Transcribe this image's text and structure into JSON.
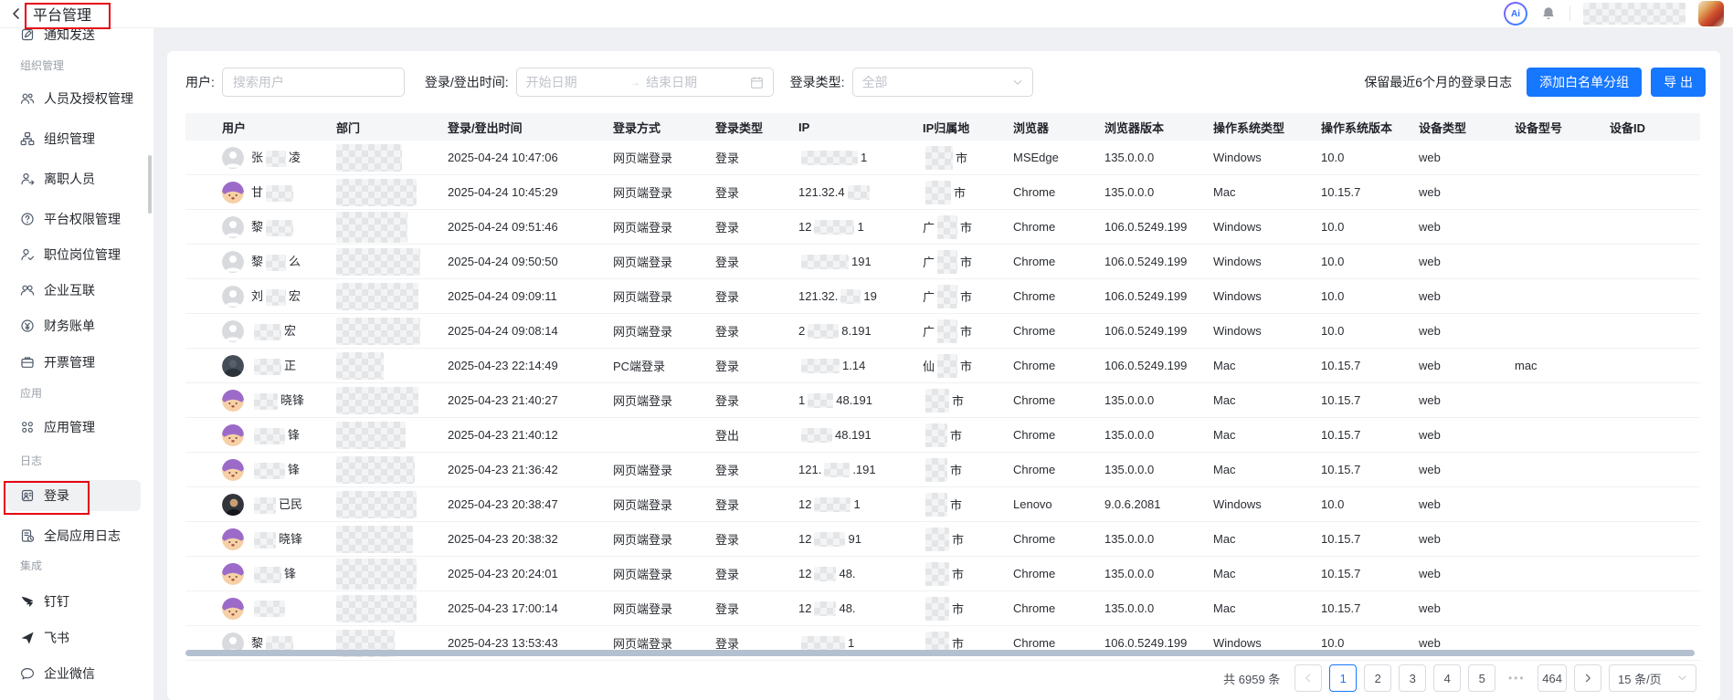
{
  "topbar": {
    "title": "平台管理",
    "ai_badge": "Ai"
  },
  "annotations": {
    "color": "#e60012"
  },
  "sidebar": {
    "items": [
      {
        "type": "item",
        "label": "通知发送",
        "icon": "notify-icon"
      },
      {
        "type": "section",
        "label": "组织管理"
      },
      {
        "type": "item",
        "label": "人员及授权管理",
        "icon": "people-icon"
      },
      {
        "type": "item",
        "label": "组织管理",
        "icon": "org-icon"
      },
      {
        "type": "item",
        "label": "离职人员",
        "icon": "person-leave-icon"
      },
      {
        "type": "item",
        "label": "平台权限管理",
        "icon": "permission-icon"
      },
      {
        "type": "item",
        "label": "职位岗位管理",
        "icon": "position-icon"
      },
      {
        "type": "item",
        "label": "企业互联",
        "icon": "enterprise-link-icon"
      },
      {
        "type": "item",
        "label": "财务账单",
        "icon": "finance-icon"
      },
      {
        "type": "item",
        "label": "开票管理",
        "icon": "invoice-icon"
      },
      {
        "type": "section",
        "label": "应用"
      },
      {
        "type": "item",
        "label": "应用管理",
        "icon": "apps-icon"
      },
      {
        "type": "section",
        "label": "日志"
      },
      {
        "type": "item",
        "label": "登录",
        "icon": "login-log-icon",
        "selected": true,
        "annotated": true
      },
      {
        "type": "item",
        "label": "全局应用日志",
        "icon": "global-log-icon"
      },
      {
        "type": "section",
        "label": "集成"
      },
      {
        "type": "item",
        "label": "钉钉",
        "icon": "dingtalk-icon"
      },
      {
        "type": "item",
        "label": "飞书",
        "icon": "feishu-icon"
      },
      {
        "type": "item",
        "label": "企业微信",
        "icon": "wecom-icon"
      }
    ]
  },
  "filters": {
    "user_label": "用户:",
    "user_placeholder": "搜索用户",
    "time_label": "登录/登出时间:",
    "start_placeholder": "开始日期",
    "range_arrow": "→",
    "end_placeholder": "结束日期",
    "type_label": "登录类型:",
    "type_value": "全部"
  },
  "toolbar": {
    "retention_note": "保留最近6个月的登录日志",
    "add_whitelist": "添加白名单分组",
    "export": "导 出"
  },
  "table": {
    "columns": [
      "用户",
      "部门",
      "登录/登出时间",
      "登录方式",
      "登录类型",
      "IP",
      "IP归属地",
      "浏览器",
      "浏览器版本",
      "操作系统类型",
      "操作系统版本",
      "设备类型",
      "设备型号",
      "设备ID"
    ],
    "rows": [
      {
        "avatar": "default",
        "name_pre": "张",
        "name_m": 22,
        "name_suf": "凌",
        "dept_m": [
          72,
          30
        ],
        "time": "2025-04-24 10:47:06",
        "method": "网页端登录",
        "type": "登录",
        "ip_pre": "",
        "ip_m": 62,
        "ip_suf": "1",
        "city_pre": "",
        "city_m": 30,
        "city_suf": "市",
        "browser": "MSEdge",
        "browser_ver": "135.0.0.0",
        "os": "Windows",
        "os_ver": "10.0",
        "device_type": "web",
        "device_model": ""
      },
      {
        "avatar": "purple",
        "name_pre": "甘",
        "name_m": 30,
        "name_suf": "",
        "dept_m": [
          88,
          30
        ],
        "time": "2025-04-24 10:45:29",
        "method": "网页端登录",
        "type": "登录",
        "ip_pre": "121.32.4",
        "ip_m": 24,
        "ip_suf": "",
        "city_pre": "",
        "city_m": 28,
        "city_suf": "市",
        "browser": "Chrome",
        "browser_ver": "135.0.0.0",
        "os": "Mac",
        "os_ver": "10.15.7",
        "device_type": "web",
        "device_model": ""
      },
      {
        "avatar": "default",
        "name_pre": "黎",
        "name_m": 30,
        "name_suf": "",
        "dept_m": [
          78,
          34
        ],
        "time": "2025-04-24 09:51:46",
        "method": "网页端登录",
        "type": "登录",
        "ip_pre": "12",
        "ip_m": 44,
        "ip_suf": "1",
        "city_pre": "广",
        "city_m": 22,
        "city_suf": "市",
        "browser": "Chrome",
        "browser_ver": "106.0.5249.199",
        "os": "Windows",
        "os_ver": "10.0",
        "device_type": "web",
        "device_model": ""
      },
      {
        "avatar": "default",
        "name_pre": "黎",
        "name_m": 22,
        "name_suf": "么",
        "dept_m": [
          92,
          30
        ],
        "time": "2025-04-24 09:50:50",
        "method": "网页端登录",
        "type": "登录",
        "ip_pre": "",
        "ip_m": 52,
        "ip_suf": "191",
        "city_pre": "广",
        "city_m": 22,
        "city_suf": "市",
        "browser": "Chrome",
        "browser_ver": "106.0.5249.199",
        "os": "Windows",
        "os_ver": "10.0",
        "device_type": "web",
        "device_model": ""
      },
      {
        "avatar": "default",
        "name_pre": "刘",
        "name_m": 22,
        "name_suf": "宏",
        "dept_m": [
          90,
          30
        ],
        "time": "2025-04-24 09:09:11",
        "method": "网页端登录",
        "type": "登录",
        "ip_pre": "121.32.",
        "ip_m": 22,
        "ip_suf": "19",
        "city_pre": "广",
        "city_m": 22,
        "city_suf": "市",
        "browser": "Chrome",
        "browser_ver": "106.0.5249.199",
        "os": "Windows",
        "os_ver": "10.0",
        "device_type": "web",
        "device_model": ""
      },
      {
        "avatar": "default",
        "name_pre": "",
        "name_m": 30,
        "name_suf": "宏",
        "dept_m": [
          92,
          30
        ],
        "time": "2025-04-24 09:08:14",
        "method": "网页端登录",
        "type": "登录",
        "ip_pre": "2",
        "ip_m": 34,
        "ip_suf": "8.191",
        "city_pre": "广",
        "city_m": 22,
        "city_suf": "市",
        "browser": "Chrome",
        "browser_ver": "106.0.5249.199",
        "os": "Windows",
        "os_ver": "10.0",
        "device_type": "web",
        "device_model": ""
      },
      {
        "avatar": "dark",
        "name_pre": "",
        "name_m": 30,
        "name_suf": "正",
        "dept_m": [
          52,
          30
        ],
        "time": "2025-04-23 22:14:49",
        "method": "PC端登录",
        "type": "登录",
        "ip_pre": "",
        "ip_m": 42,
        "ip_suf": "1.14",
        "city_pre": "仙",
        "city_m": 22,
        "city_suf": "市",
        "browser": "Chrome",
        "browser_ver": "106.0.5249.199",
        "os": "Mac",
        "os_ver": "10.15.7",
        "device_type": "web",
        "device_model": "mac"
      },
      {
        "avatar": "purple",
        "name_pre": "",
        "name_m": 26,
        "name_suf": "晓锋",
        "dept_m": [
          90,
          30
        ],
        "time": "2025-04-23 21:40:27",
        "method": "网页端登录",
        "type": "登录",
        "ip_pre": "1",
        "ip_m": 28,
        "ip_suf": "48.191",
        "city_pre": "",
        "city_m": 26,
        "city_suf": "市",
        "browser": "Chrome",
        "browser_ver": "135.0.0.0",
        "os": "Mac",
        "os_ver": "10.15.7",
        "device_type": "web",
        "device_model": ""
      },
      {
        "avatar": "purple",
        "name_pre": "",
        "name_m": 34,
        "name_suf": "锋",
        "dept_m": [
          76,
          30
        ],
        "time": "2025-04-23 21:40:12",
        "method": "",
        "type": "登出",
        "ip_pre": "",
        "ip_m": 34,
        "ip_suf": "48.191",
        "city_pre": "",
        "city_m": 24,
        "city_suf": "市",
        "browser": "Chrome",
        "browser_ver": "135.0.0.0",
        "os": "Mac",
        "os_ver": "10.15.7",
        "device_type": "web",
        "device_model": ""
      },
      {
        "avatar": "purple",
        "name_pre": "",
        "name_m": 34,
        "name_suf": "锋",
        "dept_m": [
          86,
          30
        ],
        "time": "2025-04-23 21:36:42",
        "method": "网页端登录",
        "type": "登录",
        "ip_pre": "121.",
        "ip_m": 28,
        "ip_suf": ".191",
        "city_pre": "",
        "city_m": 24,
        "city_suf": "市",
        "browser": "Chrome",
        "browser_ver": "135.0.0.0",
        "os": "Mac",
        "os_ver": "10.15.7",
        "device_type": "web",
        "device_model": ""
      },
      {
        "avatar": "person",
        "name_pre": "",
        "name_m": 24,
        "name_suf": "已民",
        "dept_m": [
          88,
          30
        ],
        "time": "2025-04-23 20:38:47",
        "method": "网页端登录",
        "type": "登录",
        "ip_pre": "12",
        "ip_m": 40,
        "ip_suf": "1",
        "city_pre": "",
        "city_m": 24,
        "city_suf": "市",
        "browser": "Lenovo",
        "browser_ver": "9.0.6.2081",
        "os": "Windows",
        "os_ver": "10.0",
        "device_type": "web",
        "device_model": ""
      },
      {
        "avatar": "purple",
        "name_pre": "",
        "name_m": 24,
        "name_suf": "晓锋",
        "dept_m": [
          84,
          30
        ],
        "time": "2025-04-23 20:38:32",
        "method": "网页端登录",
        "type": "登录",
        "ip_pre": "12",
        "ip_m": 34,
        "ip_suf": "91",
        "city_pre": "",
        "city_m": 26,
        "city_suf": "市",
        "browser": "Chrome",
        "browser_ver": "135.0.0.0",
        "os": "Mac",
        "os_ver": "10.15.7",
        "device_type": "web",
        "device_model": ""
      },
      {
        "avatar": "purple",
        "name_pre": "",
        "name_m": 30,
        "name_suf": "锋",
        "dept_m": [
          88,
          34
        ],
        "time": "2025-04-23 20:24:01",
        "method": "网页端登录",
        "type": "登录",
        "ip_pre": "12",
        "ip_m": 24,
        "ip_suf": "48.",
        "city_pre": "",
        "city_m": 26,
        "city_suf": "市",
        "browser": "Chrome",
        "browser_ver": "135.0.0.0",
        "os": "Mac",
        "os_ver": "10.15.7",
        "device_type": "web",
        "device_model": ""
      },
      {
        "avatar": "purple",
        "name_pre": "",
        "name_m": 34,
        "name_suf": "",
        "dept_m": [
          88,
          30
        ],
        "time": "2025-04-23 17:00:14",
        "method": "网页端登录",
        "type": "登录",
        "ip_pre": "12",
        "ip_m": 24,
        "ip_suf": "48.",
        "city_pre": "",
        "city_m": 26,
        "city_suf": "市",
        "browser": "Chrome",
        "browser_ver": "135.0.0.0",
        "os": "Mac",
        "os_ver": "10.15.7",
        "device_type": "web",
        "device_model": ""
      },
      {
        "avatar": "default",
        "name_pre": "黎",
        "name_m": 30,
        "name_suf": "",
        "dept_m": [
          64,
          30
        ],
        "time": "2025-04-23 13:53:43",
        "method": "网页端登录",
        "type": "登录",
        "ip_pre": "",
        "ip_m": 48,
        "ip_suf": "1",
        "city_pre": "",
        "city_m": 26,
        "city_suf": "市",
        "browser": "Chrome",
        "browser_ver": "106.0.5249.199",
        "os": "Windows",
        "os_ver": "10.0",
        "device_type": "web",
        "device_model": ""
      }
    ]
  },
  "pagination": {
    "total": "共 6959 条",
    "prev_icon": "chevron-left-icon",
    "pages": [
      "1",
      "2",
      "3",
      "4",
      "5",
      "•••",
      "464"
    ],
    "active_page": "1",
    "next_icon": "chevron-right-icon",
    "page_size": "15 条/页"
  }
}
